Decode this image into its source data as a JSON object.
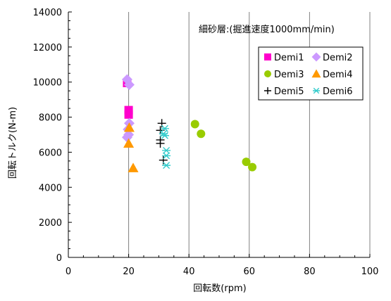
{
  "chart_data": {
    "type": "scatter",
    "annotation": "細砂層:(掘進速度1000mm/min)",
    "xlabel": "回転数(rpm)",
    "ylabel": "回転トルク(N-m)",
    "xlim": [
      0,
      100
    ],
    "ylim": [
      0,
      14000
    ],
    "xticks": [
      0,
      20,
      40,
      60,
      80,
      100
    ],
    "yticks": [
      0,
      2000,
      4000,
      6000,
      8000,
      10000,
      12000,
      14000
    ],
    "grid": "vertical major gridlines",
    "legend_position": "top-right",
    "series": [
      {
        "name": "Demi1",
        "marker": "square",
        "color": "#ff00cc",
        "points": [
          [
            19.5,
            9950
          ],
          [
            20,
            8400
          ],
          [
            20,
            8150
          ]
        ]
      },
      {
        "name": "Demi2",
        "marker": "diamond",
        "color": "#cc99ff",
        "points": [
          [
            19.5,
            10150
          ],
          [
            20.2,
            9850
          ],
          [
            20.2,
            7650
          ],
          [
            19.8,
            7300
          ],
          [
            20,
            7000
          ],
          [
            19.5,
            6850
          ]
        ]
      },
      {
        "name": "Demi3",
        "marker": "circle",
        "color": "#99cc00",
        "points": [
          [
            42,
            7600
          ],
          [
            44,
            7050
          ],
          [
            59,
            5450
          ],
          [
            61,
            5150
          ]
        ]
      },
      {
        "name": "Demi4",
        "marker": "triangle",
        "color": "#ff9900",
        "points": [
          [
            20.2,
            7400
          ],
          [
            20,
            6500
          ],
          [
            21.5,
            5100
          ]
        ]
      },
      {
        "name": "Demi5",
        "marker": "plus",
        "color": "#000000",
        "points": [
          [
            31,
            7650
          ],
          [
            30.5,
            7250
          ],
          [
            30.5,
            6700
          ],
          [
            30.5,
            6500
          ],
          [
            31.5,
            5550
          ]
        ]
      },
      {
        "name": "Demi6",
        "marker": "asterisk",
        "color": "#33cccc",
        "points": [
          [
            32,
            7350
          ],
          [
            31.5,
            7050
          ],
          [
            32,
            6950
          ],
          [
            32.5,
            6100
          ],
          [
            32.5,
            5800
          ],
          [
            32.5,
            5250
          ]
        ]
      }
    ]
  }
}
